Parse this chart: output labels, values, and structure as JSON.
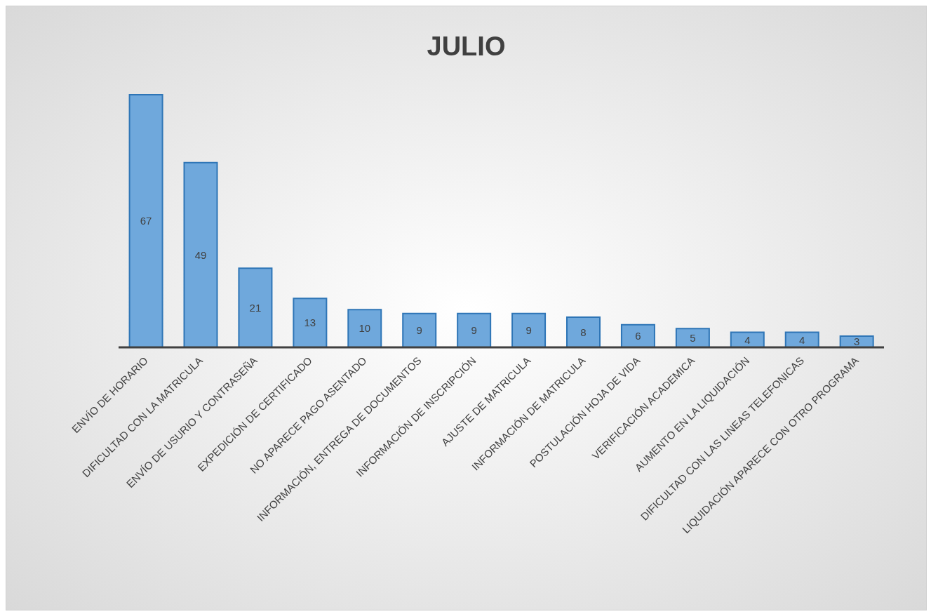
{
  "chart_data": {
    "type": "bar",
    "title": "JULIO",
    "categories": [
      "ENVÍO DE HORARIO",
      "DIFICULTAD CON LA MATRICULA",
      "ENVÍO DE USURIO Y CONTRASEÑA",
      "EXPEDICIÓN DE CERTIFICADO",
      "NO APARECE PAGO ASENTADO",
      "INFORMACIÓN, ENTREGA DE DOCUMENTOS",
      "INFORMACIÓN DE INSCRIPCIÓN",
      "AJUSTE DE MATRICULA",
      "INFORMACIÓN DE MATRICULA",
      "POSTULACIÓN HOJA DE VIDA",
      "VERIFICACIÓN ACADEMICA",
      "AUMENTO EN LA LIQUIDACIÓN",
      "DIFICULTAD CON LAS LINEAS TELEFONICAS",
      "LIQUIDACIÓN APARECE CON OTRO PROGRAMA"
    ],
    "values": [
      67,
      49,
      21,
      13,
      10,
      9,
      9,
      9,
      8,
      6,
      5,
      4,
      4,
      3
    ],
    "color": "#6fa8dc",
    "data_labels": true
  }
}
